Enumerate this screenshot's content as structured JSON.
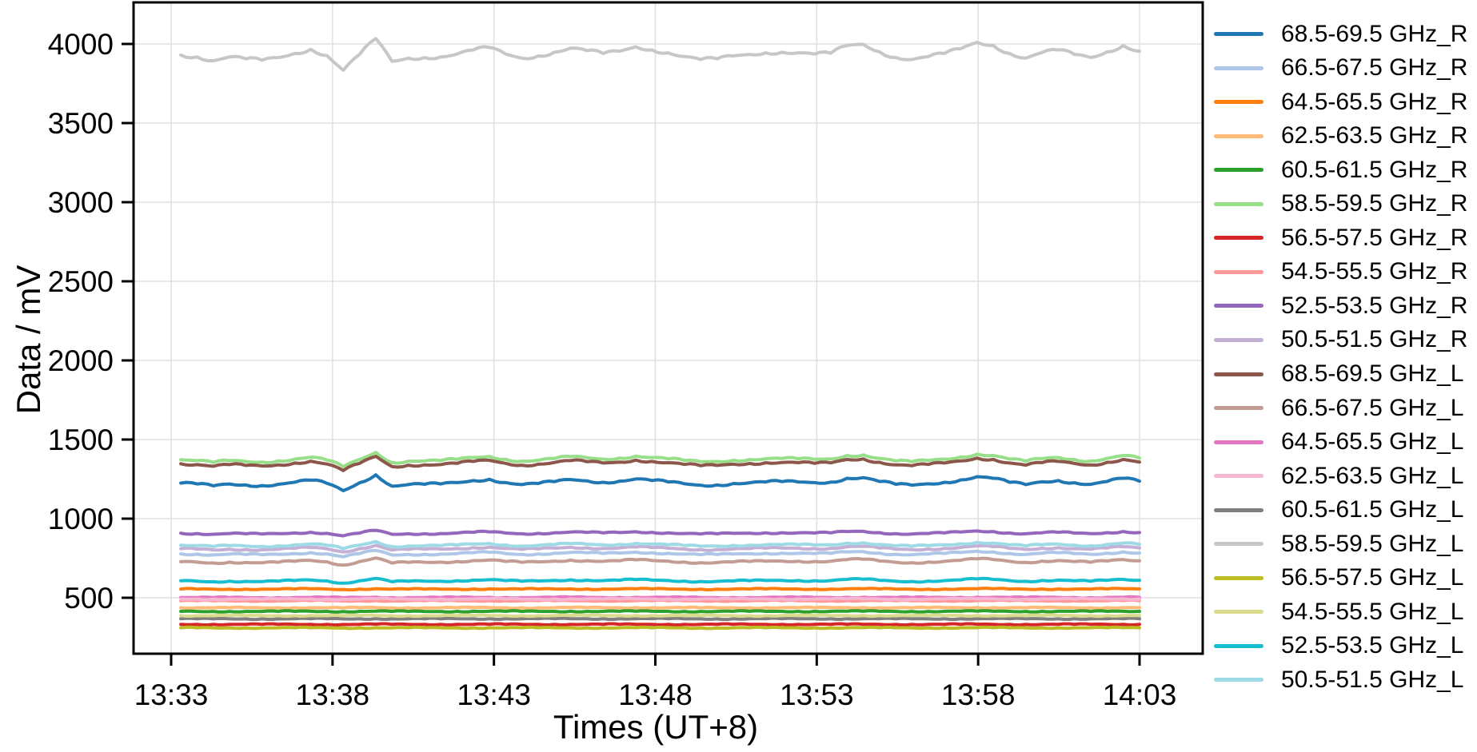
{
  "chart_data": {
    "type": "line",
    "title": "",
    "xlabel": "Times (UT+8)",
    "ylabel": "Data / mV",
    "x_tick_labels": [
      "13:33",
      "13:38",
      "13:43",
      "13:48",
      "13:53",
      "13:58",
      "14:03"
    ],
    "x_tick_minutes": [
      0,
      5,
      10,
      15,
      20,
      25,
      30
    ],
    "y_ticks": [
      500,
      1000,
      1500,
      2000,
      2500,
      3000,
      3500,
      4000
    ],
    "ylim": [
      145,
      4265
    ],
    "x_data_start": 0.3,
    "x_data_end": 30.0,
    "grid": true,
    "legend_position": "right-outside",
    "grid_color": "#e0e0e0",
    "spine_color": "#000000",
    "wiggle_mV": [
      0,
      -6,
      -18,
      -6,
      -12,
      -16,
      -8,
      5,
      18,
      -2,
      -48,
      2,
      52,
      -20,
      -10,
      -8,
      -6,
      3,
      16,
      24,
      3,
      -10,
      -3,
      9,
      22,
      14,
      5,
      12,
      26,
      16,
      7,
      -5,
      -14,
      -12,
      -3,
      2,
      7,
      9,
      7,
      3,
      6,
      30,
      34,
      10,
      -8,
      -14,
      -5,
      5,
      20,
      40,
      30,
      5,
      -10,
      8,
      16,
      2,
      -8,
      10,
      30,
      12
    ],
    "series": [
      {
        "name": "68.5-69.5 GHz_R",
        "color": "#1f77b4",
        "base_mV": 1225,
        "wiggle_scale": 1.0
      },
      {
        "name": "66.5-67.5 GHz_R",
        "color": "#aec7e8",
        "base_mV": 778,
        "wiggle_scale": 0.4
      },
      {
        "name": "64.5-65.5 GHz_R",
        "color": "#ff7f0e",
        "base_mV": 555,
        "wiggle_scale": 0.05
      },
      {
        "name": "62.5-63.5 GHz_R",
        "color": "#ffbb78",
        "base_mV": 437,
        "wiggle_scale": 0.03
      },
      {
        "name": "60.5-61.5 GHz_R",
        "color": "#2ca02c",
        "base_mV": 414,
        "wiggle_scale": 0.025
      },
      {
        "name": "58.5-59.5 GHz_R",
        "color": "#98df8a",
        "base_mV": 1372,
        "wiggle_scale": 0.9
      },
      {
        "name": "56.5-57.5 GHz_R",
        "color": "#d62728",
        "base_mV": 332,
        "wiggle_scale": 0.015
      },
      {
        "name": "54.5-55.5 GHz_R",
        "color": "#ff9896",
        "base_mV": 481,
        "wiggle_scale": 0.03
      },
      {
        "name": "52.5-53.5 GHz_R",
        "color": "#9467bd",
        "base_mV": 908,
        "wiggle_scale": 0.35
      },
      {
        "name": "50.5-51.5 GHz_R",
        "color": "#c5b0d5",
        "base_mV": 810,
        "wiggle_scale": 0.42
      },
      {
        "name": "68.5-69.5 GHz_L",
        "color": "#8c564b",
        "base_mV": 1347,
        "wiggle_scale": 0.9
      },
      {
        "name": "66.5-67.5 GHz_L",
        "color": "#c49c94",
        "base_mV": 728,
        "wiggle_scale": 0.45
      },
      {
        "name": "64.5-65.5 GHz_L",
        "color": "#e377c2",
        "base_mV": 502,
        "wiggle_scale": 0.04
      },
      {
        "name": "62.5-63.5 GHz_L",
        "color": "#f7b6d2",
        "base_mV": 492,
        "wiggle_scale": 0.035
      },
      {
        "name": "60.5-61.5 GHz_L",
        "color": "#7f7f7f",
        "base_mV": 367,
        "wiggle_scale": 0.018
      },
      {
        "name": "58.5-59.5 GHz_L",
        "color": "#c7c7c7",
        "base_mV": 3930,
        "wiggle_scale": 2.0
      },
      {
        "name": "56.5-57.5 GHz_L",
        "color": "#bcbd22",
        "base_mV": 310,
        "wiggle_scale": 0.015
      },
      {
        "name": "54.5-55.5 GHz_L",
        "color": "#dbdb8d",
        "base_mV": 387,
        "wiggle_scale": 0.02
      },
      {
        "name": "52.5-53.5 GHz_L",
        "color": "#17becf",
        "base_mV": 607,
        "wiggle_scale": 0.3
      },
      {
        "name": "50.5-51.5 GHz_L",
        "color": "#9edae5",
        "base_mV": 832,
        "wiggle_scale": 0.45
      }
    ]
  }
}
